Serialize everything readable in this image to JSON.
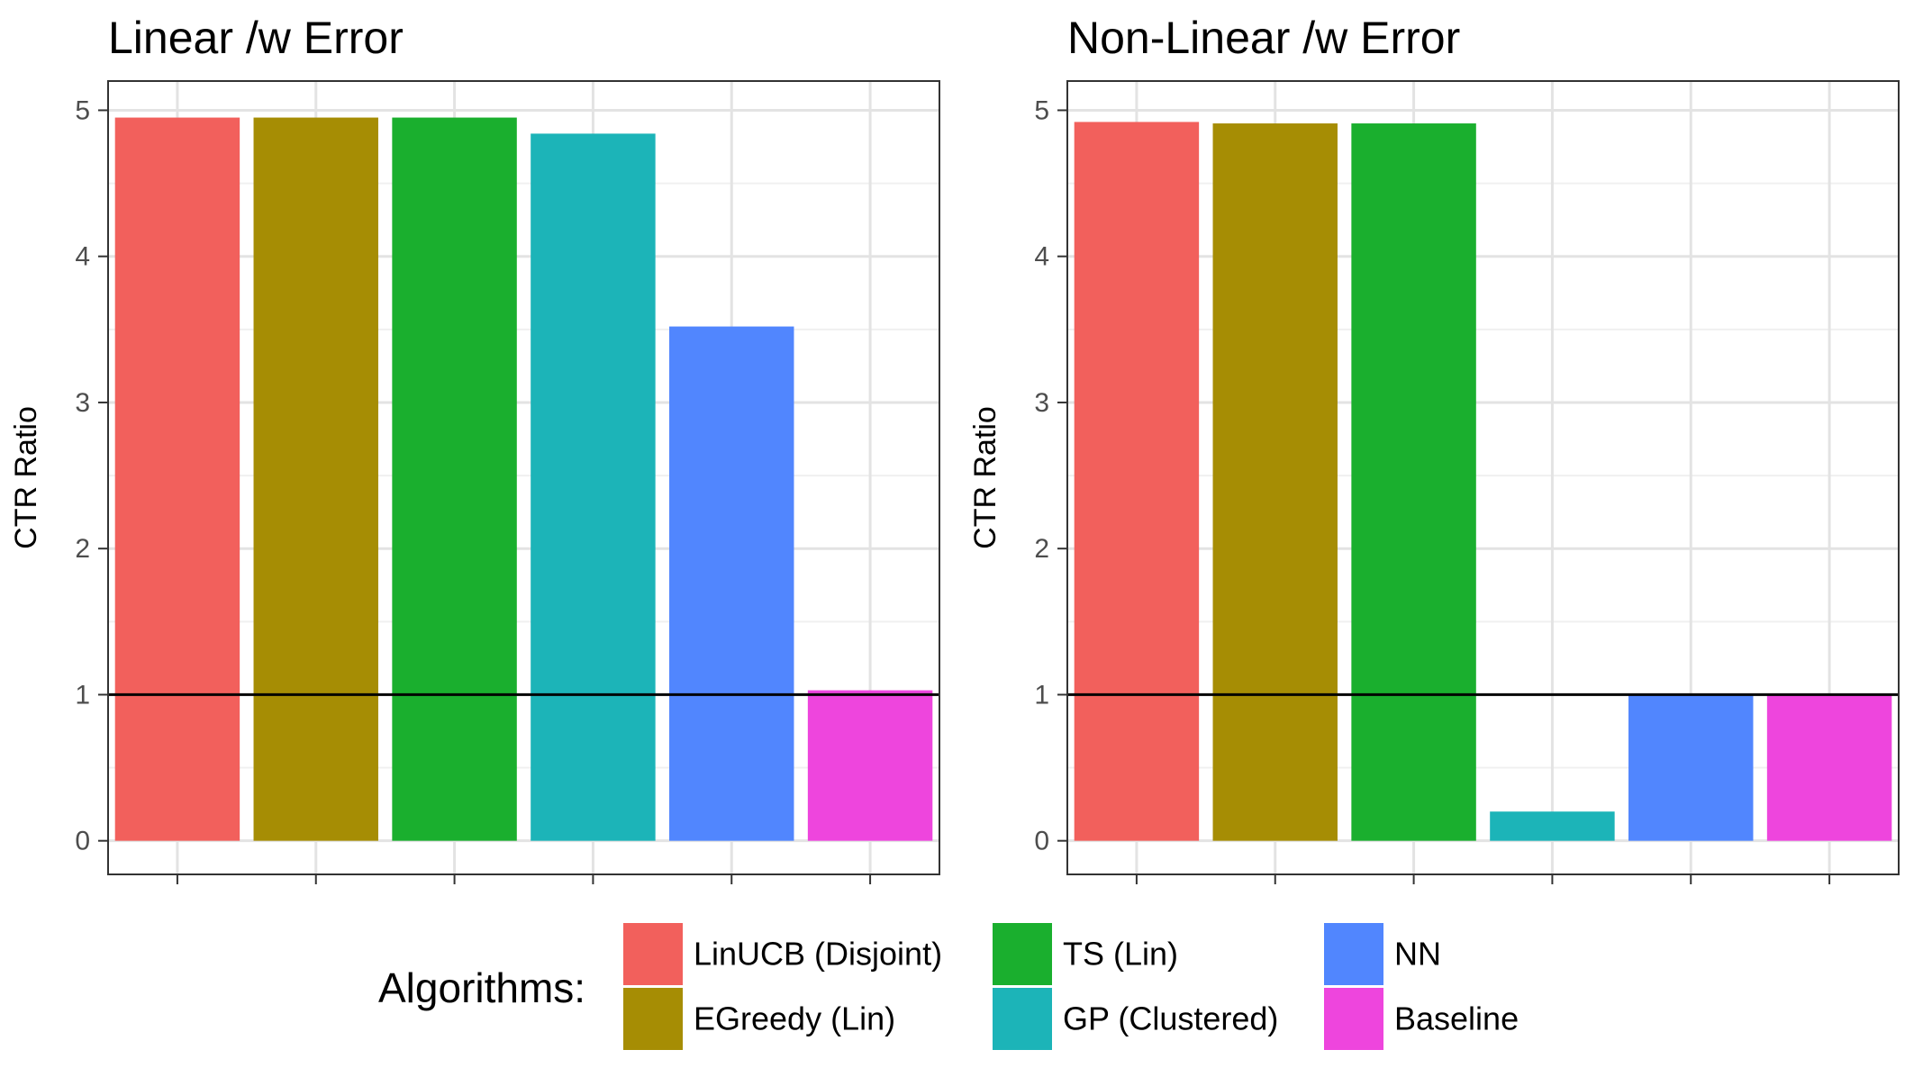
{
  "chart_data": [
    {
      "type": "bar",
      "title": "Linear /w Error",
      "xlabel": "",
      "ylabel": "CTR Ratio",
      "ylim": [
        -0.23,
        5.2
      ],
      "yticks": [
        0,
        1,
        2,
        3,
        4,
        5
      ],
      "reference_line": 1,
      "grid": true,
      "categories": [
        "LinUCB (Disjoint)",
        "EGreedy (Lin)",
        "TS (Lin)",
        "GP (Clustered)",
        "NN",
        "Baseline"
      ],
      "values": [
        4.95,
        4.95,
        4.95,
        4.84,
        3.52,
        1.03
      ]
    },
    {
      "type": "bar",
      "title": "Non-Linear /w Error",
      "xlabel": "",
      "ylabel": "CTR Ratio",
      "ylim": [
        -0.23,
        5.2
      ],
      "yticks": [
        0,
        1,
        2,
        3,
        4,
        5
      ],
      "reference_line": 1,
      "grid": true,
      "categories": [
        "LinUCB (Disjoint)",
        "EGreedy (Lin)",
        "TS (Lin)",
        "GP (Clustered)",
        "NN",
        "Baseline"
      ],
      "values": [
        4.92,
        4.91,
        4.91,
        0.2,
        1.0,
        1.0
      ]
    }
  ],
  "legend": {
    "title": "Algorithms:",
    "position": "bottom",
    "items": [
      {
        "label": "LinUCB (Disjoint)",
        "color": "#F2605C"
      },
      {
        "label": "EGreedy (Lin)",
        "color": "#A68D04"
      },
      {
        "label": "TS (Lin)",
        "color": "#1AAF2E"
      },
      {
        "label": "GP (Clustered)",
        "color": "#1CB4B8"
      },
      {
        "label": "NN",
        "color": "#5186FE"
      },
      {
        "label": "Baseline",
        "color": "#EE45DD"
      }
    ]
  }
}
